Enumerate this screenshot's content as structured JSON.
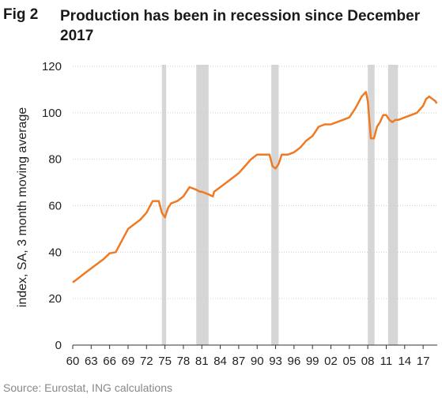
{
  "figure": {
    "label": "Fig 2",
    "title": "Production has been in recession since December 2017",
    "source": "Source: Eurostat, ING calculations"
  },
  "colors": {
    "line": "#f07a23",
    "recession": "#d6d6d6",
    "grid": "#cfcfcf",
    "axis": "#333333"
  },
  "chart_data": {
    "type": "line",
    "ylabel": "index, SA, 3 month moving average",
    "ylim": [
      0,
      120
    ],
    "yticks": [
      0,
      20,
      40,
      60,
      80,
      100,
      120
    ],
    "xlim": [
      1960,
      2019.3
    ],
    "xtick_labels": [
      "60",
      "63",
      "66",
      "69",
      "72",
      "75",
      "78",
      "81",
      "84",
      "87",
      "90",
      "93",
      "96",
      "99",
      "02",
      "05",
      "08",
      "11",
      "14",
      "17"
    ],
    "grid": "horizontal",
    "recessions": [
      [
        1974.5,
        1975.2
      ],
      [
        1980.1,
        1982.1
      ],
      [
        1992.3,
        1993.5
      ],
      [
        2008.0,
        2009.1
      ],
      [
        2011.3,
        2012.9
      ]
    ],
    "series": [
      {
        "name": "",
        "x": [
          1960,
          1961,
          1962,
          1963,
          1964,
          1965,
          1966,
          1967,
          1968,
          1969,
          1970,
          1971,
          1972,
          1973,
          1974,
          1974.5,
          1975,
          1975.5,
          1976,
          1977,
          1978,
          1979,
          1980,
          1980.7,
          1981,
          1982,
          1982.8,
          1983,
          1984,
          1985,
          1986,
          1987,
          1988,
          1989,
          1990,
          1991,
          1992,
          1992.5,
          1993,
          1993.5,
          1994,
          1995,
          1996,
          1997,
          1998,
          1999,
          2000,
          2001,
          2002,
          2003,
          2004,
          2005,
          2006,
          2007,
          2007.7,
          2008,
          2008.5,
          2009,
          2009.5,
          2010,
          2010.5,
          2011,
          2011.5,
          2012,
          2012.5,
          2013,
          2014,
          2015,
          2016,
          2017,
          2017.5,
          2018,
          2018.5,
          2019,
          2019.2
        ],
        "y": [
          27,
          29,
          31,
          33,
          35,
          37,
          39.5,
          40,
          45,
          50,
          52,
          54,
          57,
          62,
          62,
          57,
          55,
          59,
          61,
          62,
          64,
          68,
          67,
          66,
          66,
          65,
          64,
          66,
          68,
          70,
          72,
          74,
          77,
          80,
          82,
          82,
          82,
          77,
          76,
          78,
          82,
          82,
          83,
          85,
          88,
          90,
          94,
          95,
          95,
          96,
          97,
          98,
          102,
          107,
          109,
          105,
          89,
          89,
          94,
          96,
          99,
          99,
          97,
          96,
          97,
          97,
          98,
          99,
          100,
          103,
          106,
          107,
          106,
          105,
          104
        ]
      }
    ]
  }
}
